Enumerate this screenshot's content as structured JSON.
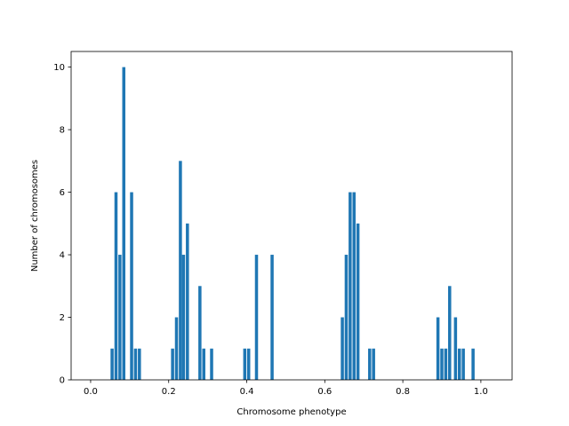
{
  "chart_data": {
    "type": "bar",
    "xlabel": "Chromosome phenotype",
    "ylabel": "Number of chromosomes",
    "xlim": [
      -0.05,
      1.08
    ],
    "ylim": [
      0,
      10.5
    ],
    "bar_width": 0.008,
    "bar_color": "#1f77b4",
    "grid": false,
    "xticks": [
      0.0,
      0.2,
      0.4,
      0.6,
      0.8,
      1.0
    ],
    "xtick_labels": [
      "0.0",
      "0.2",
      "0.4",
      "0.6",
      "0.8",
      "1.0"
    ],
    "yticks": [
      0,
      2,
      4,
      6,
      8,
      10
    ],
    "ytick_labels": [
      "0",
      "2",
      "4",
      "6",
      "8",
      "10"
    ],
    "x": [
      0.055,
      0.065,
      0.075,
      0.085,
      0.105,
      0.115,
      0.125,
      0.21,
      0.22,
      0.23,
      0.238,
      0.248,
      0.28,
      0.29,
      0.31,
      0.395,
      0.405,
      0.425,
      0.465,
      0.645,
      0.655,
      0.665,
      0.675,
      0.685,
      0.715,
      0.725,
      0.89,
      0.9,
      0.91,
      0.92,
      0.935,
      0.945,
      0.955,
      0.98
    ],
    "values": [
      1,
      6,
      4,
      10,
      6,
      1,
      1,
      1,
      2,
      7,
      4,
      5,
      3,
      1,
      1,
      1,
      1,
      4,
      4,
      2,
      4,
      6,
      6,
      5,
      1,
      1,
      2,
      1,
      1,
      3,
      2,
      1,
      1,
      1
    ]
  }
}
